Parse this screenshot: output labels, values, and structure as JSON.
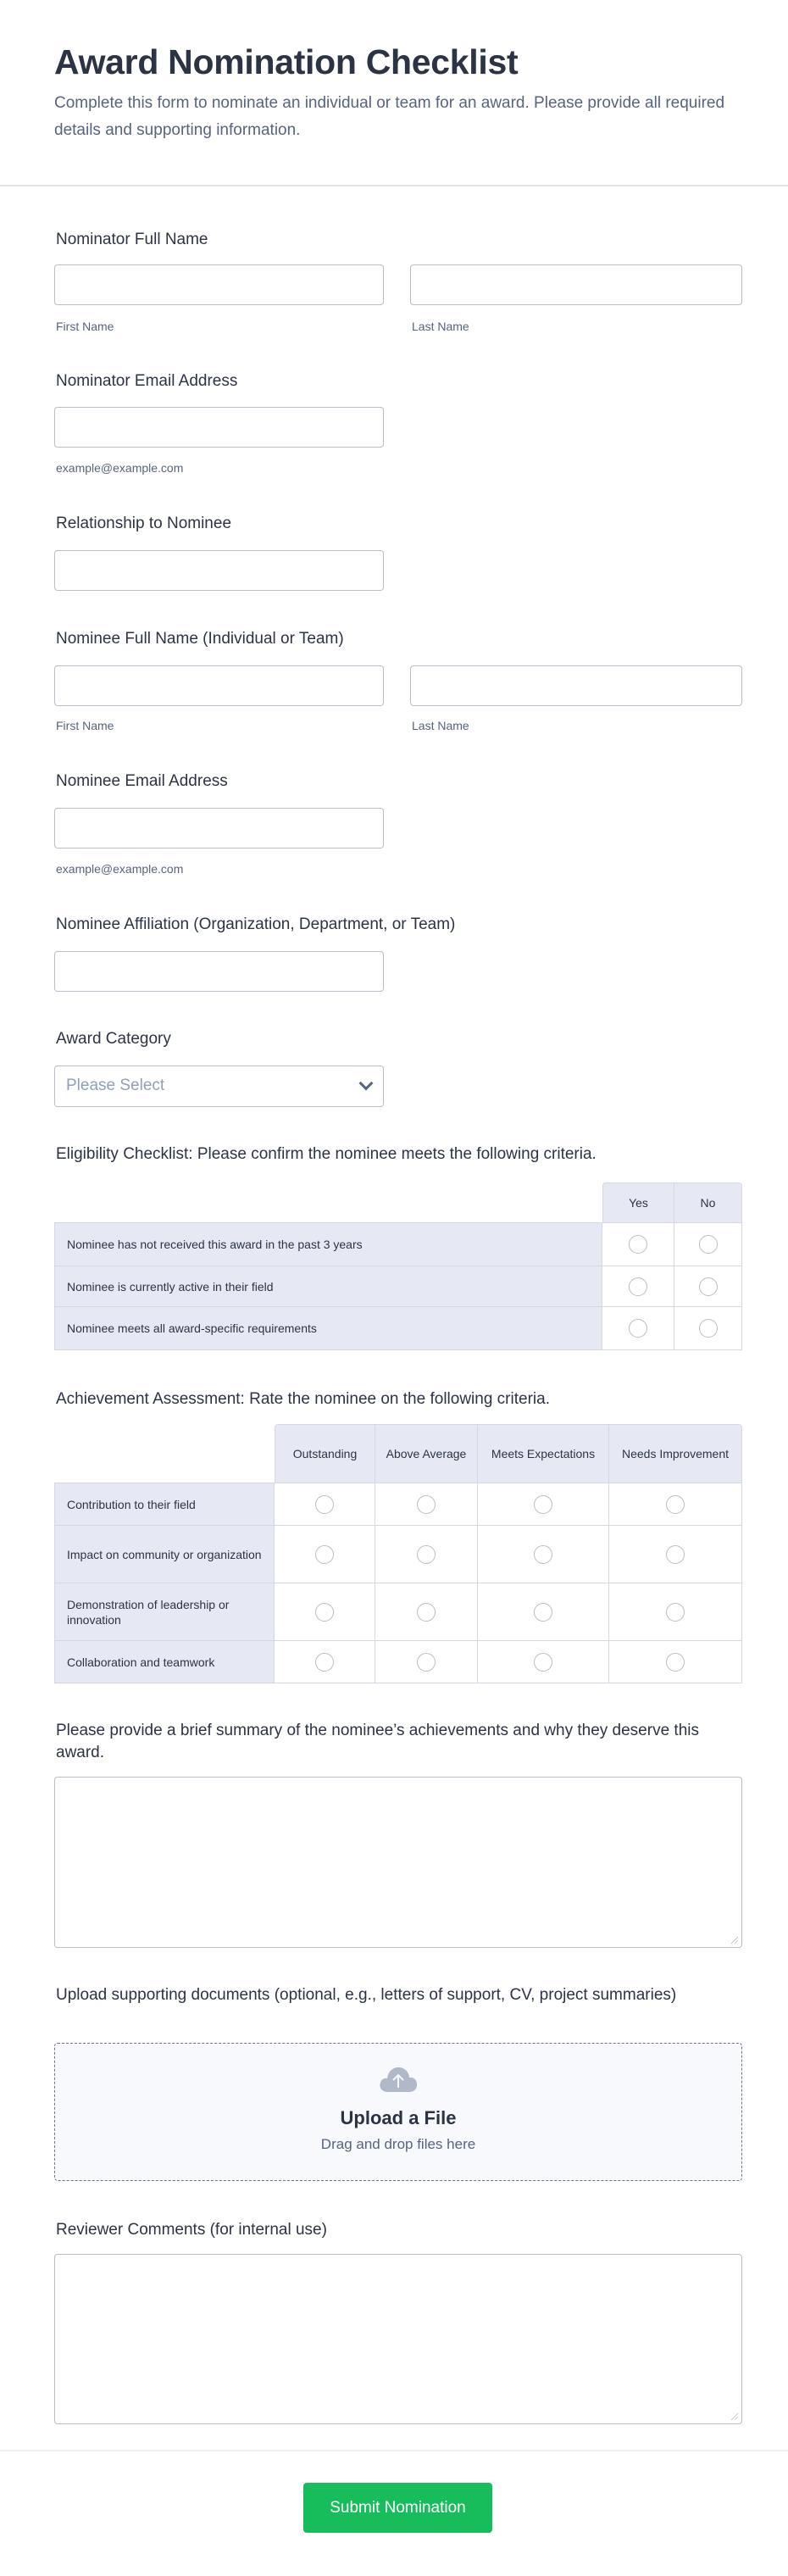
{
  "header": {
    "title": "Award Nomination Checklist",
    "description": "Complete this form to nominate an individual or team for an award. Please provide all required details and supporting information."
  },
  "fields": {
    "nominator_name": {
      "label": "Nominator Full Name",
      "first": "First Name",
      "last": "Last Name",
      "first_value": "",
      "last_value": ""
    },
    "nominator_email": {
      "label": "Nominator Email Address",
      "sublabel": "example@example.com",
      "value": ""
    },
    "relationship": {
      "label": "Relationship to Nominee",
      "value": ""
    },
    "nominee_name": {
      "label": "Nominee Full Name (Individual or Team)",
      "first": "First Name",
      "last": "Last Name",
      "first_value": "",
      "last_value": ""
    },
    "nominee_email": {
      "label": "Nominee Email Address",
      "sublabel": "example@example.com",
      "value": ""
    },
    "affiliation": {
      "label": "Nominee Affiliation (Organization, Department, or Team)",
      "value": ""
    },
    "award_category": {
      "label": "Award Category",
      "placeholder": "Please Select"
    },
    "eligibility": {
      "label": "Eligibility Checklist: Please confirm the nominee meets the following criteria.",
      "columns": [
        "Yes",
        "No"
      ],
      "rows": [
        "Nominee has not received this award in the past 3 years",
        "Nominee is currently active in their field",
        "Nominee meets all award-specific requirements"
      ]
    },
    "achievement": {
      "label": "Achievement Assessment: Rate the nominee on the following criteria.",
      "columns": [
        "Outstanding",
        "Above Average",
        "Meets Expectations",
        "Needs Improvement"
      ],
      "rows": [
        "Contribution to their field",
        "Impact on community or organization",
        "Demonstration of leadership or innovation",
        "Collaboration and teamwork"
      ]
    },
    "summary": {
      "label": "Please provide a brief summary of the nominee’s achievements and why they deserve this award.",
      "value": ""
    },
    "upload": {
      "label": "Upload supporting documents (optional, e.g., letters of support, CV, project summaries)",
      "title": "Upload a File",
      "hint": "Drag and drop files here",
      "icon": "cloud-upload-icon"
    },
    "reviewer": {
      "label": "Reviewer Comments (for internal use)",
      "value": ""
    }
  },
  "submit": {
    "label": "Submit Nomination"
  },
  "colors": {
    "accent": "#18bd5b",
    "text": "#2c3345",
    "muted": "#57647e",
    "table_header": "#e6e9f3",
    "border": "#b8bdc9"
  }
}
